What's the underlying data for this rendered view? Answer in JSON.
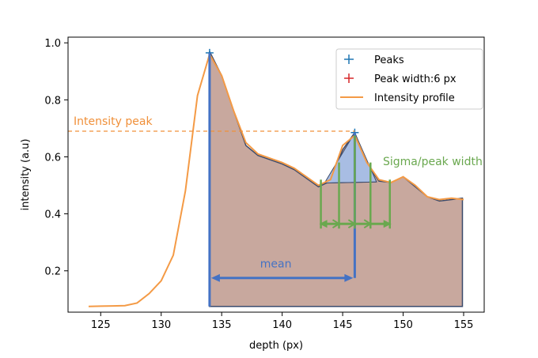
{
  "chart_data": {
    "type": "line",
    "xlabel": "depth (px)",
    "ylabel": "intensity (a.u)",
    "xlim": [
      122.3,
      156.7
    ],
    "ylim": [
      0.055,
      1.02
    ],
    "xticks": [
      125,
      130,
      135,
      140,
      145,
      150,
      155
    ],
    "yticks": [
      0.2,
      0.4,
      0.6,
      0.8,
      1.0
    ],
    "xtick_labels": [
      "125",
      "130",
      "135",
      "140",
      "145",
      "150",
      "155"
    ],
    "ytick_labels": [
      "0.2",
      "0.4",
      "0.6",
      "0.8",
      "1.0"
    ],
    "legend": {
      "placement": "top-right",
      "entries": [
        {
          "label": "Peaks",
          "marker": "+",
          "color": "#1f77b4"
        },
        {
          "label": "Peak width:6 px",
          "marker": "+",
          "color": "#d62728"
        },
        {
          "label": "Intensity profile",
          "marker": "line",
          "color": "#ff7f0e"
        }
      ]
    },
    "series": [
      {
        "name": "Intensity profile",
        "color": "#f49a45",
        "x": [
          124,
          125,
          126,
          127,
          128,
          129,
          130,
          131,
          132,
          133,
          134,
          135,
          136,
          137,
          138,
          139,
          140,
          141,
          142,
          143,
          144,
          145,
          146,
          147,
          148,
          149,
          150,
          151,
          152,
          153,
          154,
          155
        ],
        "y": [
          0.075,
          0.076,
          0.077,
          0.078,
          0.087,
          0.12,
          0.165,
          0.255,
          0.48,
          0.815,
          0.96,
          0.885,
          0.76,
          0.65,
          0.61,
          0.595,
          0.58,
          0.56,
          0.53,
          0.5,
          0.52,
          0.64,
          0.675,
          0.58,
          0.52,
          0.51,
          0.53,
          0.5,
          0.46,
          0.45,
          0.455,
          0.45
        ]
      }
    ],
    "peaks": [
      {
        "x": 134,
        "y": 0.965
      },
      {
        "x": 146,
        "y": 0.685
      }
    ],
    "filled_region": {
      "color": "#c8a89e",
      "edge": "#3b4a6b",
      "x": [
        134,
        135,
        136,
        137,
        138,
        139,
        140,
        141,
        142,
        143,
        144,
        145,
        146,
        147,
        148,
        149,
        150,
        151,
        152,
        153,
        154,
        154.9
      ],
      "y": [
        0.97,
        0.885,
        0.76,
        0.64,
        0.605,
        0.59,
        0.575,
        0.555,
        0.525,
        0.495,
        0.515,
        0.625,
        0.685,
        0.575,
        0.515,
        0.51,
        0.53,
        0.495,
        0.46,
        0.445,
        0.45,
        0.455
      ],
      "baseline": 0.075
    },
    "peak_triangle": {
      "color": "#a8bde3",
      "x": [
        143.5,
        146,
        147.8
      ],
      "y": [
        0.508,
        0.685,
        0.512
      ],
      "base_y": [
        0.508,
        0.51,
        0.512
      ]
    },
    "annotations": {
      "intensity_peak": {
        "text": "Intensity peak",
        "y": 0.69,
        "color": "#f0903a"
      },
      "sigma": {
        "text": "Sigma/peak width",
        "color": "#6aa84f",
        "lines_x": [
          143.2,
          144.7,
          146.0,
          147.3,
          148.9
        ],
        "lines_y_top": [
          0.52,
          0.58,
          0.675,
          0.58,
          0.52
        ],
        "arrow_y": 0.365
      },
      "mean": {
        "text": "mean",
        "color": "#4472c4",
        "x_from": 134,
        "x_to": 146,
        "arrow_y": 0.175
      }
    }
  }
}
